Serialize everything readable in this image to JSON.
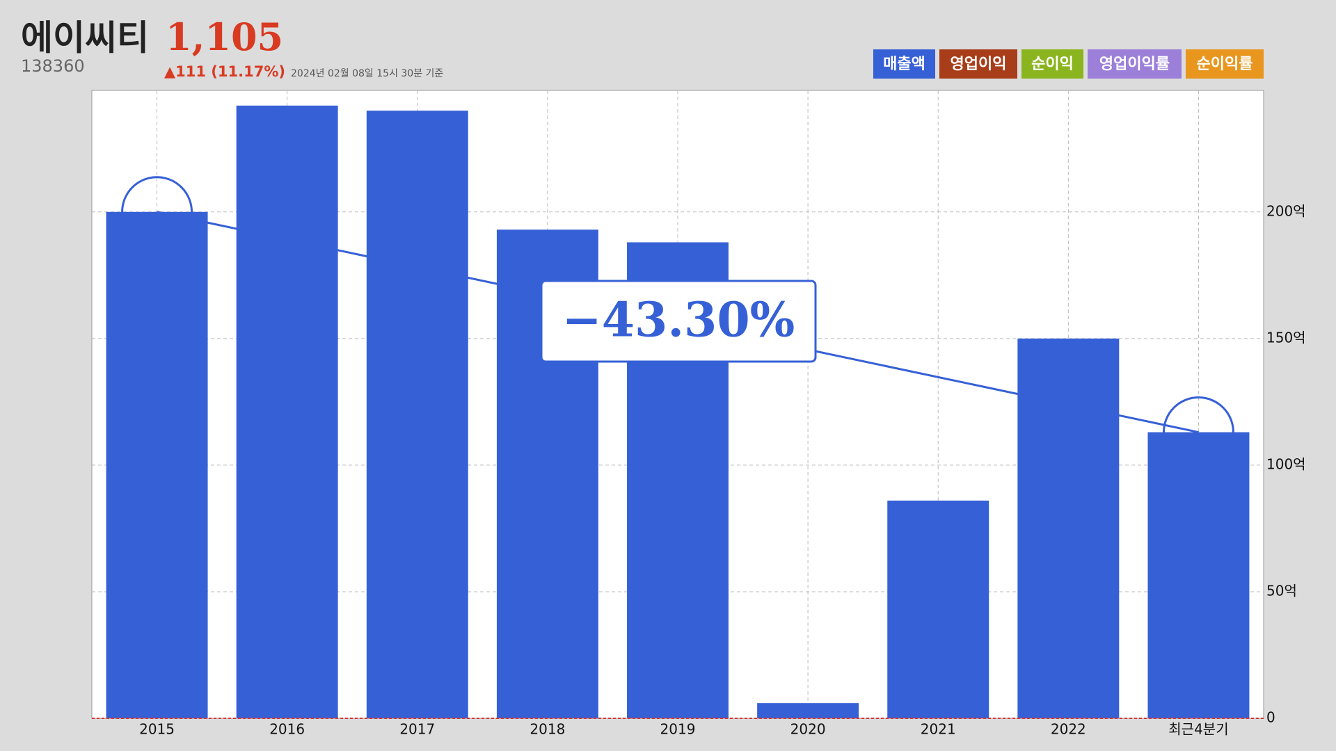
{
  "header": {
    "title": "에이씨티",
    "price": "1,105",
    "code": "138360",
    "change": "▲111 (11.17%)",
    "timestamp": "2024년 02월 08일 15시 30분 기준"
  },
  "chart_data": {
    "type": "bar",
    "categories": [
      "2015",
      "2016",
      "2017",
      "2018",
      "2019",
      "2020",
      "2021",
      "2022",
      "최근4분기"
    ],
    "series": [
      {
        "name": "매출액",
        "color": "#3660d6",
        "values": [
          200,
          242,
          240,
          193,
          188,
          6,
          86,
          150,
          113
        ]
      },
      {
        "name": "영업이익",
        "color": "#a83d1a",
        "values": [
          null,
          null,
          null,
          null,
          null,
          null,
          null,
          null,
          null
        ]
      },
      {
        "name": "순이익",
        "color": "#8ab51e",
        "values": [
          null,
          null,
          null,
          null,
          null,
          null,
          null,
          null,
          null
        ]
      },
      {
        "name": "영업이익률",
        "color": "#9b7fd9",
        "values": [
          null,
          null,
          null,
          null,
          null,
          null,
          null,
          null,
          null
        ]
      },
      {
        "name": "순이익률",
        "color": "#e8961e",
        "values": [
          null,
          null,
          null,
          null,
          null,
          null,
          null,
          null,
          null
        ]
      }
    ],
    "annotation": "−43.30%",
    "ylim": [
      0,
      248
    ],
    "yticks": [
      0,
      {
        "value": 50,
        "label": "50억"
      },
      {
        "value": 100,
        "label": "100억"
      },
      {
        "value": 150,
        "label": "150억"
      },
      {
        "value": 200,
        "label": "200억"
      }
    ],
    "grid": true
  }
}
